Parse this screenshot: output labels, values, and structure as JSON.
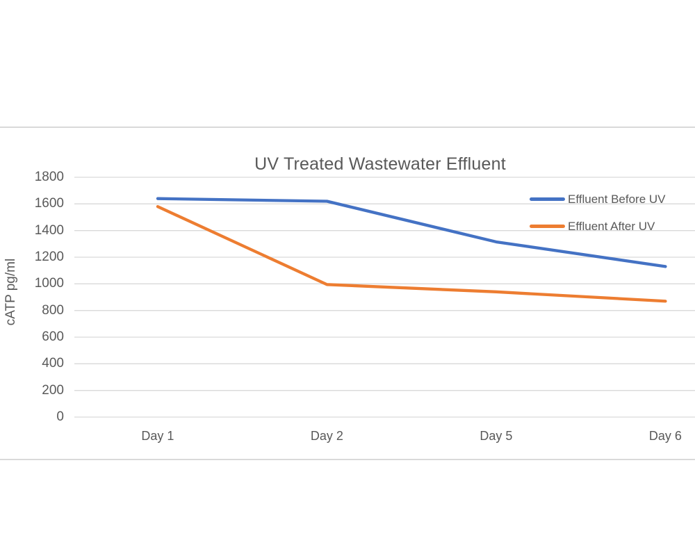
{
  "chart_data": {
    "type": "line",
    "title": "UV Treated Wastewater Effluent",
    "xlabel": "",
    "ylabel": "cATP pg/ml",
    "categories": [
      "Day 1",
      "Day 2",
      "Day 5",
      "Day 6"
    ],
    "series": [
      {
        "name": "Effluent Before UV",
        "color": "#4472C4",
        "values": [
          1640,
          1620,
          1315,
          1130
        ]
      },
      {
        "name": "Effluent After UV",
        "color": "#ED7D31",
        "values": [
          1580,
          995,
          940,
          870
        ]
      }
    ],
    "ylim": [
      0,
      1800
    ],
    "yticks": [
      0,
      200,
      400,
      600,
      800,
      1000,
      1200,
      1400,
      1600,
      1800
    ],
    "grid": true,
    "gridline_color": "#D9D9D9",
    "axis_text_color": "#595959",
    "title_color": "#595959",
    "legend": {
      "position": "inside-top-right",
      "entries": [
        "Effluent Before UV",
        "Effluent After UV"
      ]
    }
  }
}
